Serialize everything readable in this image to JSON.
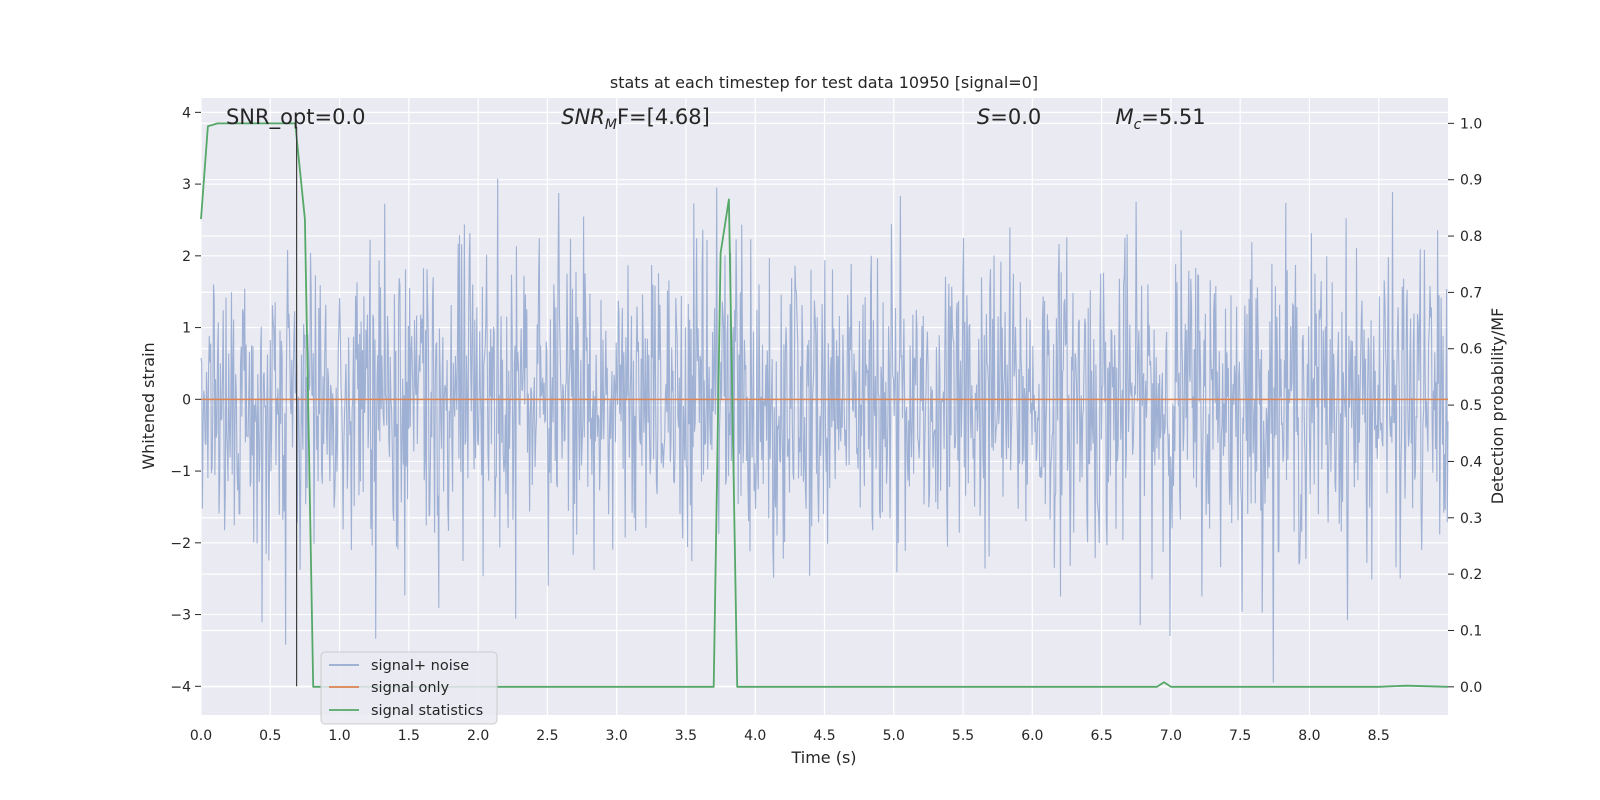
{
  "chart_data": {
    "type": "line",
    "title": "stats at each timestep for test data 10950 [signal=0]",
    "xlabel": "Time (s)",
    "ylabel": "Whitened strain",
    "ylabel_right": "Detection probability/MF",
    "xlim": [
      0.0,
      9.0
    ],
    "ylim": [
      -4.4,
      4.2
    ],
    "ylim_right": [
      -0.05,
      1.045
    ],
    "x_ticks": [
      "0.0",
      "0.5",
      "1.0",
      "1.5",
      "2.0",
      "2.5",
      "3.0",
      "3.5",
      "4.0",
      "4.5",
      "5.0",
      "5.5",
      "6.0",
      "6.5",
      "7.0",
      "7.5",
      "8.0",
      "8.5"
    ],
    "y_ticks": [
      "4",
      "3",
      "2",
      "1",
      "0",
      "−1",
      "−2",
      "−3",
      "−4"
    ],
    "y_ticks_right": [
      "1.0",
      "0.9",
      "0.8",
      "0.7",
      "0.6",
      "0.5",
      "0.4",
      "0.3",
      "0.2",
      "0.1",
      "0.0"
    ],
    "grid": true,
    "annotations": [
      {
        "prefix": "SNR_opt=0.0",
        "x_data": 0.18
      },
      {
        "prefix": "SNR",
        "sub": "M",
        "suffix": "F=[4.68]",
        "x_data": 2.6
      },
      {
        "prefix": "S",
        "suffix": "=0.0",
        "x_data": 5.6
      },
      {
        "prefix": "M",
        "sub": "c",
        "suffix": "=5.51",
        "x_data": 6.6
      }
    ],
    "vline": {
      "x": 0.69,
      "y_from": -4.0,
      "y_to": 3.8
    },
    "series": [
      {
        "name": "signal+ noise",
        "color": "#96aacf",
        "axis": "left",
        "description": "whitened noise, approximately unit-variance Gaussian",
        "x_range": [
          0.0,
          9.0
        ],
        "amplitude_range": [
          -4.0,
          3.8
        ],
        "samples": 1800
      },
      {
        "name": "signal only",
        "color": "#dd8452",
        "axis": "left",
        "x": [
          0.0,
          9.0
        ],
        "y": [
          0.0,
          0.0
        ]
      },
      {
        "name": "signal statistics",
        "color": "#55a868",
        "axis": "right",
        "x": [
          0.0,
          0.05,
          0.12,
          0.2,
          0.4,
          0.6,
          0.68,
          0.75,
          0.81,
          3.5,
          3.7,
          3.75,
          3.81,
          3.87,
          6.9,
          6.95,
          7.0,
          8.5,
          8.7,
          9.0
        ],
        "y": [
          0.83,
          0.995,
          1.0,
          1.0,
          1.0,
          1.0,
          1.0,
          0.83,
          0.0,
          0.0,
          0.0,
          0.77,
          0.865,
          0.0,
          0.0,
          0.008,
          0.0,
          0.0,
          0.002,
          0.0
        ]
      }
    ],
    "legend": {
      "placement": "lower-left",
      "entries": [
        "signal+ noise",
        "signal only",
        "signal statistics"
      ]
    }
  }
}
